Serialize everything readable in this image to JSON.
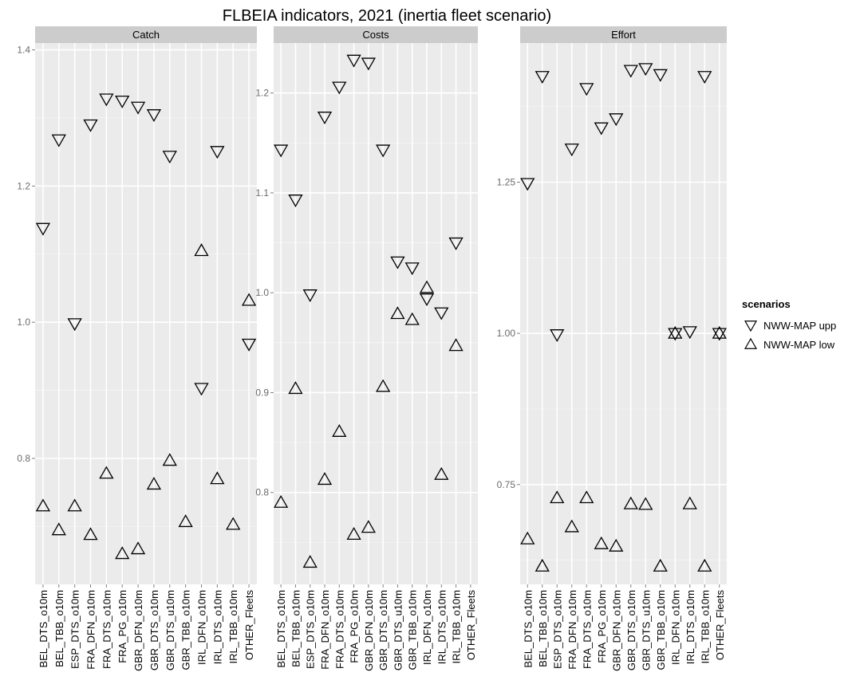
{
  "title": "FLBEIA indicators, 2021 (inertia fleet scenario)",
  "chart_data": {
    "type": "scatter",
    "title": "FLBEIA indicators, 2021 (inertia fleet scenario)",
    "xlabel": "",
    "ylabel": "",
    "categories": [
      "BEL_DTS_o10m",
      "BEL_TBB_o10m",
      "ESP_DTS_o10m",
      "FRA_DFN_o10m",
      "FRA_DTS_o10m",
      "FRA_PG_o10m",
      "GBR_DFN_o10m",
      "GBR_DTS_o10m",
      "GBR_DTS_u10m",
      "GBR_TBB_o10m",
      "IRL_DFN_o10m",
      "IRL_DTS_o10m",
      "IRL_TBB_o10m",
      "OTHER_Fleets"
    ],
    "legend": {
      "title": "scenarios",
      "placement": "right",
      "entries": [
        {
          "label": "NWW-MAP upp",
          "marker": "triangle-down"
        },
        {
          "label": "NWW-MAP low",
          "marker": "triangle-up"
        }
      ]
    },
    "panels": [
      {
        "name": "Catch",
        "ylim": [
          0.615,
          1.41
        ],
        "yticks": [
          0.8,
          1.0,
          1.2,
          1.4
        ],
        "yticklabels": [
          "0.8",
          "1.0",
          "1.2",
          "1.4"
        ],
        "series": [
          {
            "name": "NWW-MAP upp",
            "values": [
              1.138,
              1.268,
              0.998,
              1.29,
              1.328,
              1.325,
              1.316,
              1.305,
              1.244,
              null,
              0.903,
              1.251,
              null,
              0.968
            ]
          },
          {
            "name": "NWW-MAP low",
            "values": [
              0.73,
              0.695,
              0.73,
              0.688,
              0.778,
              0.66,
              0.667,
              0.762,
              0.797,
              0.707,
              1.105,
              0.77,
              0.703,
              1.032
            ]
          }
        ]
      },
      {
        "name": "Costs",
        "ylim": [
          0.708,
          1.25
        ],
        "yticks": [
          0.8,
          0.9,
          1.0,
          1.1,
          1.2
        ],
        "yticklabels": [
          "0.8",
          "0.9",
          "1.0",
          "1.1",
          "1.2"
        ],
        "series": [
          {
            "name": "NWW-MAP upp",
            "values": [
              1.143,
              1.093,
              0.998,
              1.176,
              1.206,
              1.233,
              1.23,
              1.143,
              1.031,
              1.025,
              0.994,
              0.98,
              1.05,
              null
            ]
          },
          {
            "name": "NWW-MAP low",
            "values": [
              0.79,
              0.904,
              0.73,
              0.813,
              0.861,
              0.758,
              0.765,
              0.906,
              0.979,
              0.973,
              1.005,
              0.818,
              0.947,
              null
            ]
          }
        ]
      },
      {
        "name": "Effort",
        "ylim": [
          0.585,
          1.48
        ],
        "yticks": [
          0.75,
          1.0,
          1.25
        ],
        "yticklabels": [
          "0.75",
          "1.00",
          "1.25"
        ],
        "series": [
          {
            "name": "NWW-MAP upp",
            "values": [
              1.248,
              1.425,
              0.998,
              1.305,
              1.405,
              1.34,
              1.355,
              1.435,
              1.438,
              1.428,
              1.0,
              1.003,
              1.425,
              1.0
            ]
          },
          {
            "name": "NWW-MAP low",
            "values": [
              0.66,
              0.615,
              0.728,
              0.68,
              0.728,
              0.652,
              0.648,
              0.718,
              0.717,
              0.615,
              1.0,
              0.718,
              0.615,
              1.0
            ]
          }
        ]
      }
    ]
  }
}
